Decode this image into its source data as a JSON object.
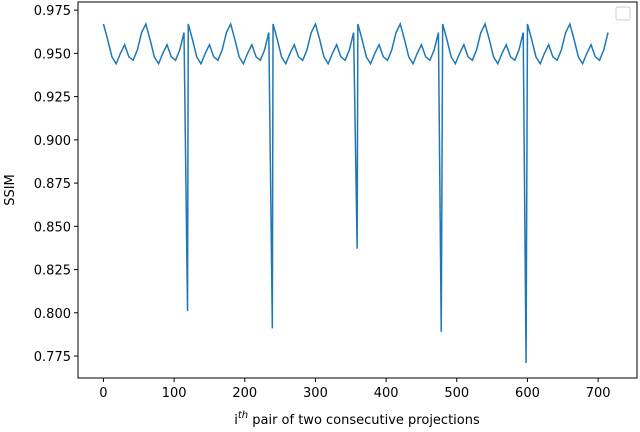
{
  "chart_data": {
    "type": "line",
    "xlabel": {
      "base": "i",
      "sup": "th",
      "rest": " pair of two consecutive projections"
    },
    "ylabel": "SSIM",
    "xlim": [
      -36,
      755
    ],
    "ylim": [
      0.7623,
      0.9797
    ],
    "xticks": [
      0,
      100,
      200,
      300,
      400,
      500,
      600,
      700
    ],
    "yticks": [
      {
        "value": 0.775,
        "label": "0.775"
      },
      {
        "value": 0.8,
        "label": "0.800"
      },
      {
        "value": 0.825,
        "label": "0.825"
      },
      {
        "value": 0.85,
        "label": "0.850"
      },
      {
        "value": 0.875,
        "label": "0.875"
      },
      {
        "value": 0.9,
        "label": "0.900"
      },
      {
        "value": 0.925,
        "label": "0.925"
      },
      {
        "value": 0.95,
        "label": "0.950"
      },
      {
        "value": 0.975,
        "label": "0.975"
      }
    ],
    "series": [
      {
        "color": "#1f77b4",
        "x": [
          0,
          6,
          12,
          18,
          24,
          30,
          36,
          42,
          48,
          54,
          60,
          66,
          72,
          78,
          84,
          90,
          96,
          102,
          108,
          114,
          119,
          120,
          126,
          132,
          138,
          144,
          150,
          156,
          162,
          168,
          174,
          180,
          186,
          192,
          198,
          204,
          210,
          216,
          222,
          228,
          234,
          239,
          240,
          246,
          252,
          258,
          264,
          270,
          276,
          282,
          288,
          294,
          300,
          306,
          312,
          318,
          324,
          330,
          336,
          342,
          348,
          354,
          359,
          360,
          366,
          372,
          378,
          384,
          390,
          396,
          402,
          408,
          414,
          420,
          426,
          432,
          438,
          444,
          450,
          456,
          462,
          468,
          474,
          478,
          480,
          486,
          492,
          498,
          504,
          510,
          516,
          522,
          528,
          534,
          540,
          546,
          552,
          558,
          564,
          570,
          576,
          582,
          588,
          594,
          598,
          600,
          606,
          612,
          618,
          624,
          630,
          636,
          642,
          648,
          654,
          660,
          666,
          672,
          678,
          684,
          690,
          696,
          702,
          708,
          714
        ],
        "values": [
          0.967,
          0.958,
          0.948,
          0.944,
          0.95,
          0.955,
          0.948,
          0.946,
          0.952,
          0.962,
          0.967,
          0.958,
          0.948,
          0.944,
          0.95,
          0.955,
          0.948,
          0.946,
          0.952,
          0.962,
          0.801,
          0.967,
          0.958,
          0.948,
          0.944,
          0.95,
          0.955,
          0.948,
          0.946,
          0.952,
          0.962,
          0.967,
          0.958,
          0.948,
          0.944,
          0.95,
          0.955,
          0.948,
          0.946,
          0.952,
          0.962,
          0.791,
          0.967,
          0.958,
          0.948,
          0.944,
          0.95,
          0.955,
          0.948,
          0.946,
          0.952,
          0.962,
          0.967,
          0.958,
          0.948,
          0.944,
          0.95,
          0.955,
          0.948,
          0.946,
          0.952,
          0.962,
          0.837,
          0.967,
          0.958,
          0.948,
          0.944,
          0.95,
          0.955,
          0.948,
          0.946,
          0.952,
          0.962,
          0.967,
          0.958,
          0.948,
          0.944,
          0.95,
          0.955,
          0.948,
          0.946,
          0.952,
          0.962,
          0.789,
          0.967,
          0.958,
          0.948,
          0.944,
          0.95,
          0.955,
          0.948,
          0.946,
          0.952,
          0.962,
          0.967,
          0.958,
          0.948,
          0.944,
          0.95,
          0.955,
          0.948,
          0.946,
          0.952,
          0.962,
          0.771,
          0.967,
          0.958,
          0.948,
          0.944,
          0.95,
          0.955,
          0.948,
          0.946,
          0.952,
          0.962,
          0.967,
          0.958,
          0.948,
          0.944,
          0.95,
          0.955,
          0.948,
          0.946,
          0.952,
          0.962
        ]
      }
    ]
  }
}
